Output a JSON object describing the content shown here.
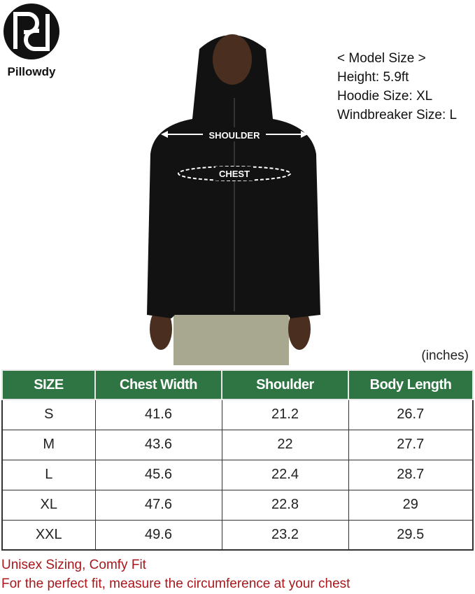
{
  "brand": {
    "name": "Pillowdy"
  },
  "model_info": [
    "< Model Size >",
    "Height: 5.9ft",
    "Hoodie Size: XL",
    "Windbreaker Size: L"
  ],
  "labels": {
    "shoulder": "SHOULDER",
    "chest": "CHEST"
  },
  "units": "(inches)",
  "table": {
    "headers": [
      "SIZE",
      "Chest Width",
      "Shoulder",
      "Body Length"
    ],
    "rows": [
      [
        "S",
        "41.6",
        "21.2",
        "26.7"
      ],
      [
        "M",
        "43.6",
        "22",
        "27.7"
      ],
      [
        "L",
        "45.6",
        "22.4",
        "28.7"
      ],
      [
        "XL",
        "47.6",
        "22.8",
        "29"
      ],
      [
        "XXL",
        "49.6",
        "23.2",
        "29.5"
      ]
    ]
  },
  "notes": [
    "Unisex Sizing, Comfy Fit",
    "For the perfect fit, measure the circumference at your chest"
  ],
  "colors": {
    "header": "#2f7443",
    "note": "#a8171b"
  }
}
